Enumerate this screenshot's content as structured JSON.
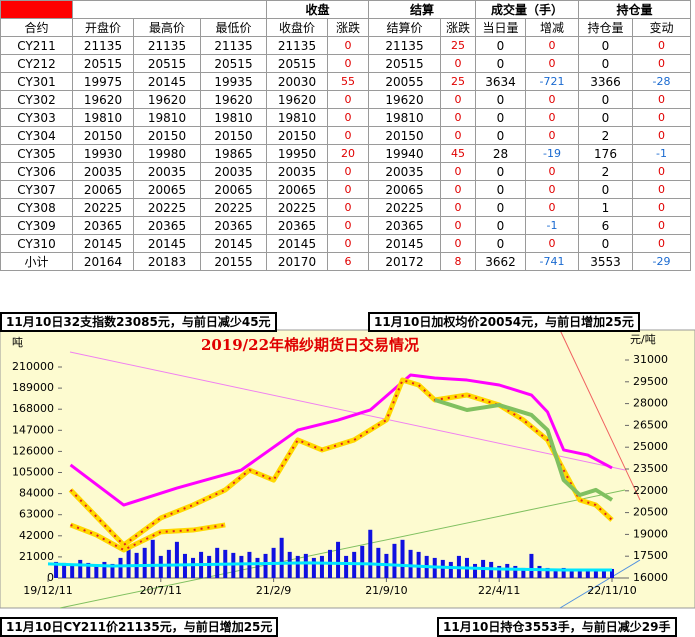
{
  "table": {
    "header_top": [
      "收盘",
      "结算",
      "成交量（手）",
      "持仓量"
    ],
    "header": [
      "合约",
      "开盘价",
      "最高价",
      "最低价",
      "收盘价",
      "涨跌",
      "结算价",
      "涨跌",
      "当日量",
      "增减",
      "持仓量",
      "变动"
    ],
    "rows": [
      [
        "CY211",
        21135,
        21135,
        21135,
        21135,
        0,
        21135,
        25,
        0,
        0,
        0,
        0
      ],
      [
        "CY212",
        20515,
        20515,
        20515,
        20515,
        0,
        20515,
        0,
        0,
        0,
        0,
        0
      ],
      [
        "CY301",
        19975,
        20145,
        19935,
        20030,
        55,
        20055,
        25,
        3634,
        -721,
        3366,
        -28
      ],
      [
        "CY302",
        19620,
        19620,
        19620,
        19620,
        0,
        19620,
        0,
        0,
        0,
        0,
        0
      ],
      [
        "CY303",
        19810,
        19810,
        19810,
        19810,
        0,
        19810,
        0,
        0,
        0,
        0,
        0
      ],
      [
        "CY304",
        20150,
        20150,
        20150,
        20150,
        0,
        20150,
        0,
        0,
        0,
        2,
        0
      ],
      [
        "CY305",
        19930,
        19980,
        19865,
        19950,
        20,
        19940,
        45,
        28,
        -19,
        176,
        -1
      ],
      [
        "CY306",
        20035,
        20035,
        20035,
        20035,
        0,
        20035,
        0,
        0,
        0,
        2,
        0
      ],
      [
        "CY307",
        20065,
        20065,
        20065,
        20065,
        0,
        20065,
        0,
        0,
        0,
        0,
        0
      ],
      [
        "CY308",
        20225,
        20225,
        20225,
        20225,
        0,
        20225,
        0,
        0,
        0,
        1,
        0
      ],
      [
        "CY309",
        20365,
        20365,
        20365,
        20365,
        0,
        20365,
        0,
        0,
        -1,
        6,
        0
      ],
      [
        "CY310",
        20145,
        20145,
        20145,
        20145,
        0,
        20145,
        0,
        0,
        0,
        0,
        0
      ],
      [
        "小计",
        20164,
        20183,
        20155,
        20170,
        6,
        20172,
        8,
        3662,
        -741,
        3553,
        -29
      ]
    ],
    "change_columns": [
      5,
      7,
      9,
      11
    ],
    "change_color": "#e00000",
    "negative_color": "#1a6ad0"
  },
  "notes": [
    "11月10日32支指数23085元，与前日减少45元",
    "11月10日加权均价20054元，与前日增加25元",
    "11月10日CY211价21135元，与前日增加25元",
    "11月10日持仓3553手，与前日减少29手"
  ],
  "chart_data": {
    "type": "line",
    "title": "2019/22年棉纱期货日交易情况",
    "y_label": "吨",
    "y2_label": "元/吨",
    "xlim": [
      0,
      35
    ],
    "xticks": [
      {
        "value": 0,
        "label": "19/12/11"
      },
      {
        "value": 7,
        "label": "20/7/11"
      },
      {
        "value": 14,
        "label": "21/2/9"
      },
      {
        "value": 21,
        "label": "21/9/10"
      },
      {
        "value": 28,
        "label": "22/4/11"
      },
      {
        "value": 35,
        "label": "22/11/10"
      }
    ],
    "ylim": [
      0,
      210000
    ],
    "yticks": [
      0,
      21000,
      42000,
      63000,
      84000,
      105000,
      126000,
      147000,
      168000,
      189000,
      210000
    ],
    "y2lim": [
      16000,
      31000
    ],
    "y2ticks": [
      16000,
      17500,
      19000,
      20500,
      22000,
      23500,
      25000,
      26500,
      28000,
      29500,
      31000
    ],
    "series": [
      {
        "type": "bar",
        "axis": "y",
        "color": "#1010e0",
        "x": [
          0.5,
          1,
          1.5,
          2,
          2.5,
          3,
          3.5,
          4,
          4.5,
          5,
          5.5,
          6,
          6.5,
          7,
          7.5,
          8,
          8.5,
          9,
          9.5,
          10,
          10.5,
          11,
          11.5,
          12,
          12.5,
          13,
          13.5,
          14,
          14.5,
          15,
          15.5,
          16,
          16.5,
          17,
          17.5,
          18,
          18.5,
          19,
          19.5,
          20,
          20.5,
          21,
          21.5,
          22,
          22.5,
          23,
          23.5,
          24,
          24.5,
          25,
          25.5,
          26,
          26.5,
          27,
          27.5,
          28,
          28.5,
          29,
          29.5,
          30,
          30.5,
          31,
          31.5,
          32,
          32.5,
          33,
          33.5,
          34,
          34.5,
          35
        ],
        "values": [
          16000,
          15000,
          14000,
          18000,
          15000,
          13000,
          16000,
          14000,
          20000,
          32000,
          25000,
          30000,
          38000,
          22000,
          28000,
          36000,
          24000,
          20000,
          26000,
          22000,
          30000,
          28000,
          25000,
          22000,
          26000,
          20000,
          24000,
          30000,
          40000,
          26000,
          22000,
          24000,
          20000,
          22000,
          28000,
          36000,
          22000,
          26000,
          32000,
          48000,
          30000,
          24000,
          34000,
          38000,
          28000,
          26000,
          22000,
          20000,
          18000,
          16000,
          22000,
          20000,
          14000,
          18000,
          16000,
          12000,
          14000,
          12000,
          10000,
          24000,
          12000,
          10000,
          9000,
          10000,
          8000,
          9000,
          8000,
          7000,
          8000,
          9000
        ]
      },
      {
        "axis": "y",
        "color": "#00e5ff",
        "width": 3,
        "x": [
          0,
          4,
          8,
          12,
          16,
          20,
          24,
          28,
          32,
          35
        ],
        "values": [
          14000,
          12000,
          13000,
          14000,
          15000,
          14000,
          11000,
          9000,
          8000,
          8000
        ]
      },
      {
        "axis": "y2",
        "color": "#ff00ff",
        "width": 3,
        "x": [
          1.4,
          4.7,
          8,
          12,
          15.5,
          18,
          20,
          22.5,
          24,
          26,
          28,
          30,
          31,
          32,
          33.5,
          35
        ],
        "values": [
          23780,
          21020,
          22190,
          23430,
          26180,
          26870,
          27560,
          29970,
          29760,
          29620,
          29280,
          28590,
          27420,
          24810,
          24460,
          23570
        ]
      },
      {
        "axis": "y2",
        "color": "#ffd800",
        "marker_color": "#e02020",
        "width": 5,
        "x": [
          1.4,
          3,
          4.7,
          7,
          9,
          11
        ],
        "values": [
          19650,
          18960,
          17930,
          19170,
          19300,
          19650
        ]
      },
      {
        "axis": "y2",
        "color": "#ffd800",
        "marker_color": "#e02020",
        "width": 5,
        "x": [
          1.4,
          4.7,
          7,
          9,
          11,
          12.5,
          14,
          15.5,
          17,
          19,
          21,
          22,
          23,
          24,
          26,
          28,
          29.5,
          31,
          32,
          33,
          34,
          35
        ],
        "values": [
          22060,
          18270,
          20130,
          21020,
          22060,
          23430,
          22740,
          25500,
          24810,
          25500,
          26870,
          29620,
          29280,
          28250,
          28590,
          27900,
          26870,
          25500,
          23430,
          21370,
          21020,
          19990
        ]
      },
      {
        "axis": "y2",
        "color": "#80c060",
        "width": 4,
        "x": [
          24,
          26,
          28,
          30,
          31,
          32,
          33,
          34,
          35
        ],
        "values": [
          28250,
          27560,
          27900,
          27220,
          26180,
          22740,
          21710,
          22060,
          21370
        ]
      }
    ]
  }
}
